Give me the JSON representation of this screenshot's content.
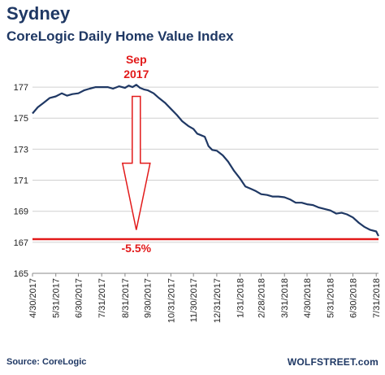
{
  "header": {
    "title": "Sydney",
    "subtitle": "CoreLogic Daily Home Value Index"
  },
  "footer": {
    "source": "Source: CoreLogic",
    "brand": "WOLFSTREET.com"
  },
  "colors": {
    "series": "#1f3864",
    "annotation": "#e21a1a",
    "grid": "#d0d0d0",
    "text": "#1f3864"
  },
  "chart_data": {
    "type": "line",
    "title": "CoreLogic Daily Home Value Index",
    "xlabel": "",
    "ylabel": "",
    "grid": "horizontal",
    "ylim": [
      165,
      178
    ],
    "yticks": [
      165,
      167,
      169,
      171,
      173,
      175,
      177
    ],
    "xtick_labels": [
      "4/30/2017",
      "5/31/2017",
      "6/30/2017",
      "7/31/2017",
      "8/31/2017",
      "9/30/2017",
      "10/31/2017",
      "11/30/2017",
      "12/31/2017",
      "1/31/2018",
      "2/28/2018",
      "3/31/2018",
      "4/30/2018",
      "5/31/2018",
      "6/30/2018",
      "7/31/2018"
    ],
    "series": [
      {
        "x": [
          "2017-04-30",
          "2017-05-07",
          "2017-05-15",
          "2017-05-23",
          "2017-05-31",
          "2017-06-08",
          "2017-06-15",
          "2017-06-22",
          "2017-06-30",
          "2017-07-08",
          "2017-07-15",
          "2017-07-23",
          "2017-07-31",
          "2017-08-08",
          "2017-08-15",
          "2017-08-23",
          "2017-08-31",
          "2017-09-05",
          "2017-09-10",
          "2017-09-15",
          "2017-09-20",
          "2017-09-25",
          "2017-09-30",
          "2017-10-08",
          "2017-10-15",
          "2017-10-23",
          "2017-10-31",
          "2017-11-08",
          "2017-11-15",
          "2017-11-23",
          "2017-11-30",
          "2017-12-05",
          "2017-12-10",
          "2017-12-15",
          "2017-12-20",
          "2017-12-25",
          "2017-12-31",
          "2018-01-08",
          "2018-01-15",
          "2018-01-23",
          "2018-01-31",
          "2018-02-07",
          "2018-02-14",
          "2018-02-21",
          "2018-02-28",
          "2018-03-08",
          "2018-03-15",
          "2018-03-23",
          "2018-03-31",
          "2018-04-08",
          "2018-04-15",
          "2018-04-23",
          "2018-04-30",
          "2018-05-08",
          "2018-05-15",
          "2018-05-23",
          "2018-05-31",
          "2018-06-08",
          "2018-06-15",
          "2018-06-22",
          "2018-06-30",
          "2018-07-08",
          "2018-07-15",
          "2018-07-23",
          "2018-07-31",
          "2018-08-03"
        ],
        "values": [
          175.3,
          175.7,
          176.0,
          176.3,
          176.4,
          176.6,
          176.45,
          176.55,
          176.6,
          176.8,
          176.9,
          177.0,
          177.0,
          177.0,
          176.9,
          177.05,
          176.95,
          177.1,
          177.0,
          177.15,
          176.95,
          176.85,
          176.8,
          176.6,
          176.3,
          176.0,
          175.6,
          175.2,
          174.8,
          174.5,
          174.3,
          174.0,
          173.9,
          173.8,
          173.2,
          172.95,
          172.9,
          172.6,
          172.2,
          171.6,
          171.1,
          170.6,
          170.45,
          170.3,
          170.1,
          170.05,
          169.95,
          169.95,
          169.9,
          169.75,
          169.55,
          169.55,
          169.45,
          169.4,
          169.25,
          169.15,
          169.05,
          168.85,
          168.9,
          168.8,
          168.6,
          168.25,
          168.0,
          167.8,
          167.7,
          167.4
        ],
        "color": "#1f3864"
      }
    ],
    "reference_line": {
      "value": 167.2,
      "color": "#e21a1a",
      "label": "-5.5%"
    },
    "peak_annotation": {
      "date": "2017-09-15",
      "label_line1": "Sep",
      "label_line2": "2017"
    }
  }
}
